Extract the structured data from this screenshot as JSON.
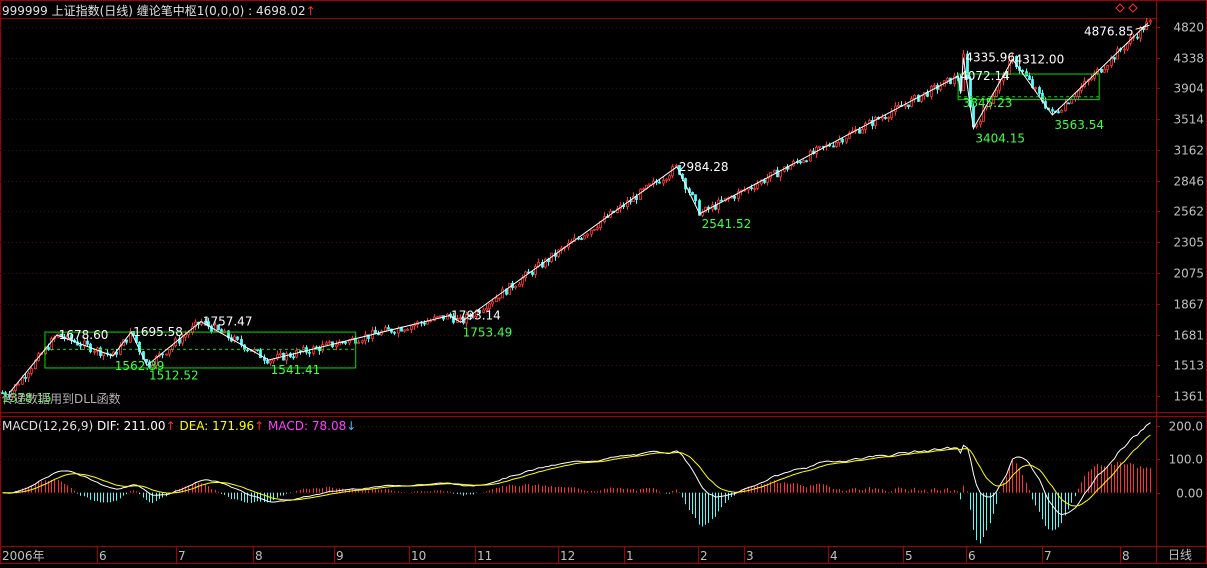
{
  "header": {
    "title": "999999 上证指数(日线) 缠论笔中枢1(0,0,0)",
    "value_label": ": 4698.02",
    "value_arrow": "↑"
  },
  "subtitle_overlay": "传递数据用到DLL函数",
  "macd_header": {
    "name": "MACD(12,26,9)",
    "dif": "DIF: 211.00",
    "dea": "DEA: 171.96",
    "macd": "MACD: 78.08",
    "dif_arrow": "↑",
    "dea_arrow": "↑",
    "macd_arrow": "↓"
  },
  "period_label": "日线",
  "colors": {
    "background": "#000000",
    "up": "#ff3232",
    "down": "#54fcfc",
    "frame": "#a00000",
    "axis_text": "#c0c0c0",
    "pen": "#ffffff",
    "zone": "#00e000",
    "low_label": "#40ff40",
    "dif": "#ffffff",
    "dea": "#ffff00",
    "macd_text": "#ff40ff"
  },
  "chart_data": [
    {
      "type": "candlestick",
      "title": "999999 上证指数(日线)",
      "y_ticks": [
        4820,
        4338,
        3904,
        3514,
        3162,
        2846,
        2562,
        2305,
        2075,
        1867,
        1681,
        1513,
        1361
      ],
      "y_scale": "log",
      "ylim": [
        1290,
        5000
      ],
      "x_ticks": [
        "2006年",
        "6",
        "7",
        "8",
        "9",
        "10",
        "11",
        "12",
        "1",
        "2",
        "3",
        "4",
        "5",
        "6",
        "7",
        "8"
      ],
      "stroke_points": [
        {
          "x": "2006-04-25",
          "y": 1378.15
        },
        {
          "x": "2006-05-15",
          "y": 1678.6
        },
        {
          "x": "2006-06-07",
          "y": 1562.39
        },
        {
          "x": "2006-06-14",
          "y": 1695.58
        },
        {
          "x": "2006-06-20",
          "y": 1512.52
        },
        {
          "x": "2006-07-11",
          "y": 1757.47
        },
        {
          "x": "2006-08-07",
          "y": 1541.41
        },
        {
          "x": "2006-10-23",
          "y": 1793.14
        },
        {
          "x": "2006-10-27",
          "y": 1753.49
        },
        {
          "x": "2007-01-24",
          "y": 2984.28
        },
        {
          "x": "2007-02-02",
          "y": 2541.52
        },
        {
          "x": "2007-05-29",
          "y": 4072.14
        },
        {
          "x": "2007-05-30",
          "y": 3845.23
        },
        {
          "x": "2007-05-31",
          "y": 4335.96
        },
        {
          "x": "2007-06-04",
          "y": 3404.15
        },
        {
          "x": "2007-06-20",
          "y": 4312.0
        },
        {
          "x": "2007-07-06",
          "y": 3563.54
        },
        {
          "x": "2007-08-24",
          "y": 4876.85
        }
      ],
      "point_labels": [
        {
          "text": "1378.15",
          "kind": "low"
        },
        {
          "text": "1678.60",
          "kind": "high"
        },
        {
          "text": "1562.39",
          "kind": "low"
        },
        {
          "text": "1695.58",
          "kind": "high"
        },
        {
          "text": "1512.52",
          "kind": "low"
        },
        {
          "text": "1757.47",
          "kind": "high"
        },
        {
          "text": "1541.41",
          "kind": "low"
        },
        {
          "text": "1793.14",
          "kind": "high"
        },
        {
          "text": "1753.49",
          "kind": "low"
        },
        {
          "text": "2984.28",
          "kind": "high"
        },
        {
          "text": "2541.52",
          "kind": "low"
        },
        {
          "text": "4072.14",
          "kind": "high"
        },
        {
          "text": "3845.23",
          "kind": "low"
        },
        {
          "text": "4335.96",
          "kind": "high"
        },
        {
          "text": "3404.15",
          "kind": "low"
        },
        {
          "text": "4312.00",
          "kind": "high"
        },
        {
          "text": "3563.54",
          "kind": "low"
        },
        {
          "text": "4876.85",
          "kind": "high"
        }
      ],
      "zhongshu": [
        {
          "start": "2006-05-10",
          "end": "2006-09-12",
          "high": 1678.6,
          "low": 1562.4,
          "outer_high": 1695.6,
          "outer_low": 1541.4
        },
        {
          "start": "2007-05-29",
          "end": "2007-07-24",
          "high": 3845.2,
          "low": 3845.2,
          "outer_high": 4100,
          "outer_low": 3860
        }
      ]
    },
    {
      "type": "bar",
      "title": "MACD(12,26,9)",
      "y_ticks": [
        "200.0",
        "100.0",
        "0.00"
      ],
      "ylim": [
        -160,
        230
      ],
      "series": [
        {
          "name": "DIF",
          "last": 211.0
        },
        {
          "name": "DEA",
          "last": 171.96
        },
        {
          "name": "MACD",
          "last": 78.08
        }
      ]
    }
  ]
}
